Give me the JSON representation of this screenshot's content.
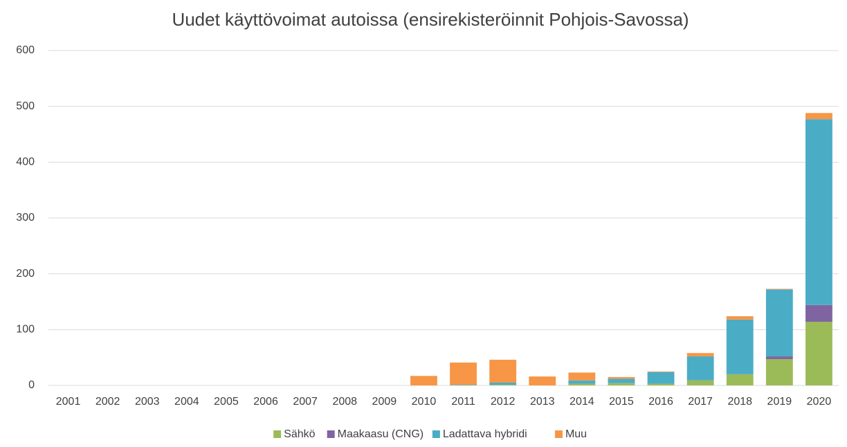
{
  "chart_data": {
    "type": "stacked_bar",
    "title": "Uudet käyttövoimat autoissa (ensirekisteröinnit Pohjois-Savossa)",
    "categories": [
      "2001",
      "2002",
      "2003",
      "2004",
      "2005",
      "2006",
      "2007",
      "2008",
      "2009",
      "2010",
      "2011",
      "2012",
      "2013",
      "2014",
      "2015",
      "2016",
      "2017",
      "2018",
      "2019",
      "2020"
    ],
    "series": [
      {
        "name": "Sähkö",
        "color": "#9bbb59",
        "values": [
          0,
          0,
          0,
          0,
          0,
          0,
          0,
          0,
          0,
          0,
          0,
          1,
          0,
          3,
          4,
          3,
          9,
          20,
          47,
          114
        ]
      },
      {
        "name": "Maakaasu (CNG)",
        "color": "#8064a2",
        "values": [
          0,
          0,
          0,
          0,
          0,
          0,
          0,
          0,
          0,
          0,
          0,
          0,
          0,
          0,
          0,
          0,
          0,
          0,
          5,
          30
        ]
      },
      {
        "name": "Ladattava hybridi",
        "color": "#4bacc6",
        "values": [
          0,
          0,
          0,
          0,
          0,
          0,
          0,
          0,
          0,
          0,
          1,
          4,
          0,
          6,
          8,
          21,
          43,
          98,
          120,
          333
        ]
      },
      {
        "name": "Muu",
        "color": "#f79646",
        "values": [
          0,
          0,
          0,
          0,
          0,
          0,
          0,
          0,
          0,
          17,
          40,
          41,
          16,
          14,
          3,
          1,
          6,
          6,
          1,
          11
        ]
      }
    ],
    "ylim": [
      0,
      600
    ],
    "yticks": [
      0,
      100,
      200,
      300,
      400,
      500,
      600
    ],
    "grid": true,
    "legend": "bottom"
  }
}
